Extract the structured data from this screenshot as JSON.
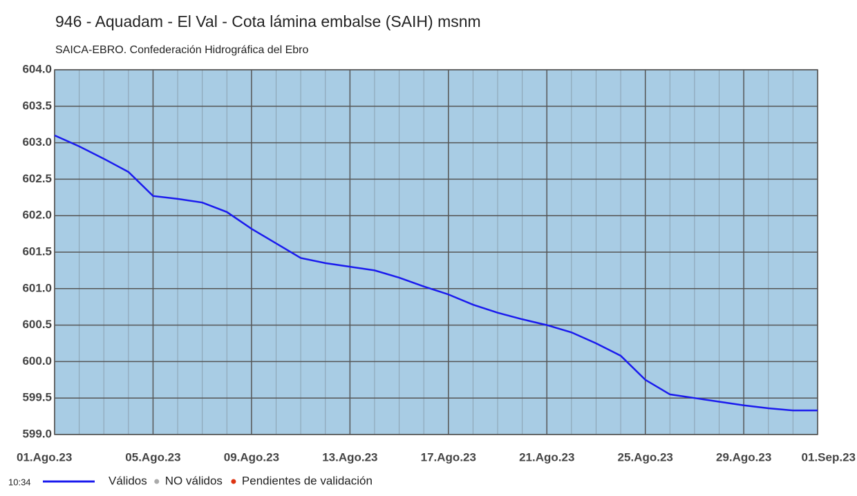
{
  "chart_data": {
    "type": "line",
    "title": "946 - Aquadam - El Val - Cota lámina embalse (SAIH) msnm",
    "subtitle": "SAICA-EBRO. Confederación Hidrográfica del Ebro",
    "categories": [
      "01.Ago.23",
      null,
      null,
      null,
      "05.Ago.23",
      null,
      null,
      null,
      "09.Ago.23",
      null,
      null,
      null,
      "13.Ago.23",
      null,
      null,
      null,
      "17.Ago.23",
      null,
      null,
      null,
      "21.Ago.23",
      null,
      null,
      null,
      "25.Ago.23",
      null,
      null,
      null,
      "29.Ago.23",
      null,
      null,
      "01.Sep.23"
    ],
    "series": [
      {
        "name": "Válidos",
        "color": "#1a1aee",
        "values": [
          603.1,
          602.95,
          602.78,
          602.6,
          602.27,
          602.23,
          602.18,
          602.05,
          601.82,
          601.62,
          601.42,
          601.35,
          601.3,
          601.25,
          601.15,
          601.03,
          600.92,
          600.78,
          600.67,
          600.58,
          600.5,
          600.4,
          600.25,
          600.08,
          599.75,
          599.55,
          599.5,
          599.45,
          599.4,
          599.36,
          599.33,
          599.33
        ]
      }
    ],
    "legend_extra": [
      {
        "name": "NO válidos",
        "color": "#aaaaaa"
      },
      {
        "name": "Pendientes de validación",
        "color": "#dd3311"
      }
    ],
    "time_label": "10:34",
    "ylim": [
      599,
      604
    ],
    "yticks": [
      {
        "value": 599,
        "label": "599.0"
      },
      {
        "value": 599.5,
        "label": "599.5"
      },
      {
        "value": 600,
        "label": "600.0"
      },
      {
        "value": 600.5,
        "label": "600.5"
      },
      {
        "value": 601,
        "label": "601.0"
      },
      {
        "value": 601.5,
        "label": "601.5"
      },
      {
        "value": 602,
        "label": "602.0"
      },
      {
        "value": 602.5,
        "label": "602.5"
      },
      {
        "value": 603,
        "label": "603.0"
      },
      {
        "value": 603.5,
        "label": "603.5"
      },
      {
        "value": 604,
        "label": "604.0"
      }
    ],
    "grid": true,
    "background": "#a8cce4"
  }
}
